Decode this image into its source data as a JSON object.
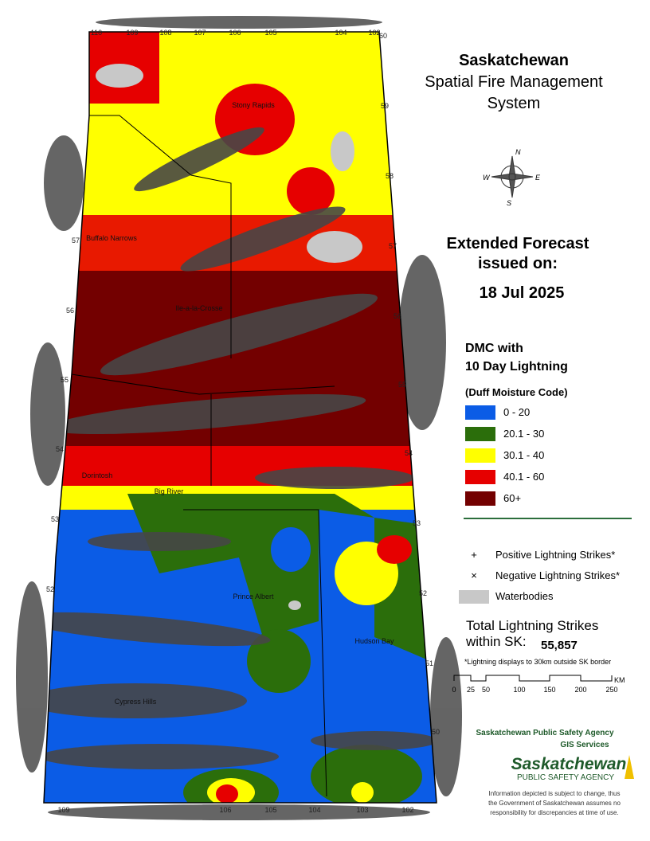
{
  "header": {
    "title": "Saskatchewan",
    "subtitle": [
      "Spatial Fire Management",
      "System"
    ]
  },
  "forecast": {
    "label": [
      "Extended Forecast",
      "issued on:"
    ],
    "date": "18 Jul 2025"
  },
  "legend": {
    "title": [
      "DMC with",
      "10 Day Lightning"
    ],
    "subtitle": "(Duff Moisture Code)",
    "classes": [
      {
        "label": "0 - 20",
        "color": "#0b5ce6"
      },
      {
        "label": "20.1 - 30",
        "color": "#2b6e0b"
      },
      {
        "label": "30.1 - 40",
        "color": "#ffff00"
      },
      {
        "label": "40.1 - 60",
        "color": "#e60000"
      },
      {
        "label": "60+",
        "color": "#730000"
      }
    ]
  },
  "symbols": [
    {
      "symbol": "+",
      "label": "Positive Lightning Strikes*"
    },
    {
      "symbol": "×",
      "label": "Negative Lightning Strikes*"
    },
    {
      "label": "Waterbodies",
      "color": "#c8c8c8"
    }
  ],
  "total": {
    "label": [
      "Total Lightning Strikes",
      "within SK:"
    ],
    "value": "55,857"
  },
  "note": "*Lightning displays to 30km outside SK border",
  "scale": {
    "ticks": [
      "0",
      "25",
      "50",
      "100",
      "150",
      "200",
      "250"
    ],
    "unit": "KM"
  },
  "compass": [
    "N",
    "E",
    "S",
    "W"
  ],
  "agency": {
    "name": "Saskatchewan Public Safety Agency",
    "dept": "GIS  Services",
    "logo": [
      "Saskatchewan",
      "PUBLIC SAFETY AGENCY"
    ]
  },
  "disclaimer": [
    "Information depicted is subject to change, thus",
    "the Government of Saskatchewan assumes no",
    "responsibility for discrepancies at time of use."
  ],
  "map": {
    "top_longitudes": [
      "110",
      "109",
      "108",
      "107",
      "106",
      "105",
      "104",
      "102"
    ],
    "bottom_longitudes": [
      "109",
      "106",
      "105",
      "104",
      "103",
      "102"
    ],
    "left_latitudes": [
      "57",
      "56",
      "55",
      "54",
      "53",
      "52"
    ],
    "right_latitudes": [
      "60",
      "59",
      "58",
      "57",
      "56",
      "55",
      "54",
      "53",
      "52",
      "51",
      "50"
    ],
    "places": [
      "Stony Rapids",
      "Buffalo Narrows",
      "Ile-a-la-Crosse",
      "Dorintosh",
      "Big River",
      "Prince Albert",
      "Hudson Bay",
      "Cypress Hills"
    ]
  }
}
